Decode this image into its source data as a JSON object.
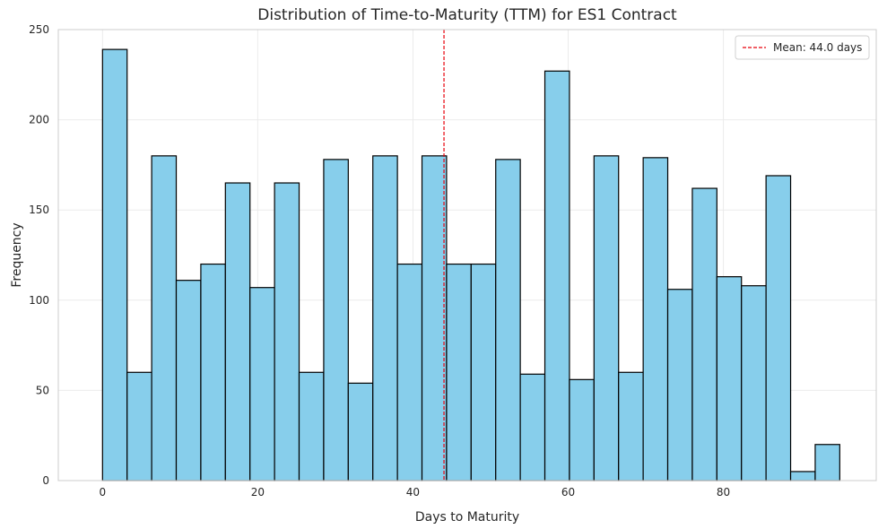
{
  "chart_data": {
    "type": "bar",
    "title": "Distribution of Time-to-Maturity (TTM) for ES1 Contract",
    "xlabel": "Days to Maturity",
    "ylabel": "Frequency",
    "xlim": [
      -5.7,
      99.7
    ],
    "ylim": [
      0,
      250
    ],
    "xticks": [
      0,
      20,
      40,
      60,
      80
    ],
    "yticks": [
      0,
      50,
      100,
      150,
      200,
      250
    ],
    "grid": true,
    "bin_edges": [
      0,
      3.167,
      6.333,
      9.5,
      12.667,
      15.833,
      19,
      22.167,
      25.333,
      28.5,
      31.667,
      34.833,
      38,
      41.167,
      44.333,
      47.5,
      50.667,
      53.833,
      57,
      60.167,
      63.333,
      66.5,
      69.667,
      72.833,
      76,
      79.167,
      82.333,
      85.5,
      88.667,
      91.833,
      95
    ],
    "values": [
      239,
      60,
      180,
      111,
      120,
      165,
      107,
      165,
      60,
      178,
      54,
      180,
      120,
      180,
      120,
      120,
      178,
      59,
      227,
      56,
      180,
      60,
      179,
      106,
      162,
      113,
      108,
      169,
      5,
      20
    ],
    "bar_color": "#87CEEB",
    "edge_color": "#000000",
    "mean_line": {
      "value": 44.0,
      "color": "#E8000B",
      "style": "dashed"
    },
    "legend": {
      "position": "top-right",
      "entries": [
        "Mean: 44.0 days"
      ]
    }
  }
}
